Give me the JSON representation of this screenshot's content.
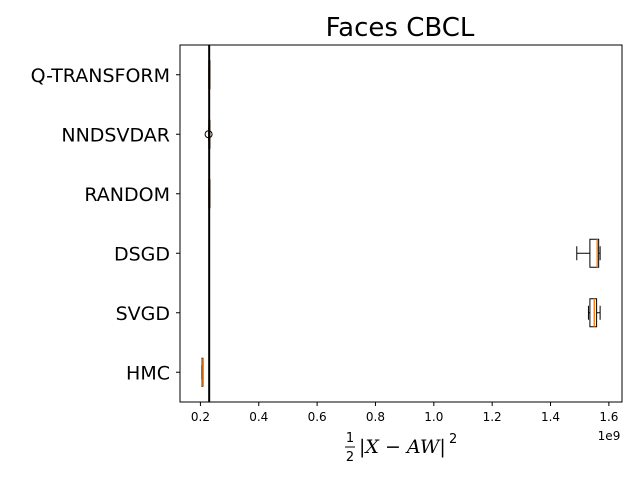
{
  "chart_data": {
    "type": "box",
    "orientation": "horizontal",
    "title": "Faces CBCL",
    "xlabel": {
      "frac_num": "1",
      "frac_den": "2",
      "body": "|X − AW|",
      "power": "2"
    },
    "x_offset_label": "1e9",
    "xlim": [
      0.13,
      1.645
    ],
    "x_ticks": [
      0.2,
      0.4,
      0.6,
      0.8,
      1.0,
      1.2,
      1.4,
      1.6
    ],
    "x_tick_labels": [
      "0.2",
      "0.4",
      "0.6",
      "0.8",
      "1.0",
      "1.2",
      "1.4",
      "1.6"
    ],
    "reference_line_x": 0.23,
    "categories": [
      "Q-TRANSFORM",
      "NNDSVDAR",
      "RANDOM",
      "DSGD",
      "SVGD",
      "HMC"
    ],
    "boxes": [
      {
        "label": "Q-TRANSFORM",
        "whislo": 0.229,
        "q1": 0.229,
        "med": 0.2295,
        "q3": 0.23,
        "whishi": 0.23,
        "fliers": []
      },
      {
        "label": "NNDSVDAR",
        "whislo": 0.228,
        "q1": 0.229,
        "med": 0.2295,
        "q3": 0.23,
        "whishi": 0.231,
        "fliers": [
          0.228
        ]
      },
      {
        "label": "RANDOM",
        "whislo": 0.229,
        "q1": 0.229,
        "med": 0.2295,
        "q3": 0.23,
        "whishi": 0.23,
        "fliers": []
      },
      {
        "label": "DSGD",
        "whislo": 1.49,
        "q1": 1.535,
        "med": 1.56,
        "q3": 1.565,
        "whishi": 1.57,
        "fliers": []
      },
      {
        "label": "SVGD",
        "whislo": 1.53,
        "q1": 1.535,
        "med": 1.55,
        "q3": 1.558,
        "whishi": 1.57,
        "fliers": []
      },
      {
        "label": "HMC",
        "whislo": 0.204,
        "q1": 0.205,
        "med": 0.2055,
        "q3": 0.206,
        "whishi": 0.207,
        "fliers": []
      }
    ],
    "colors": {
      "box_edge": "#000000",
      "box_fill": "#ffffff",
      "median": "#ff7f0e",
      "reference_line": "#000000"
    }
  }
}
